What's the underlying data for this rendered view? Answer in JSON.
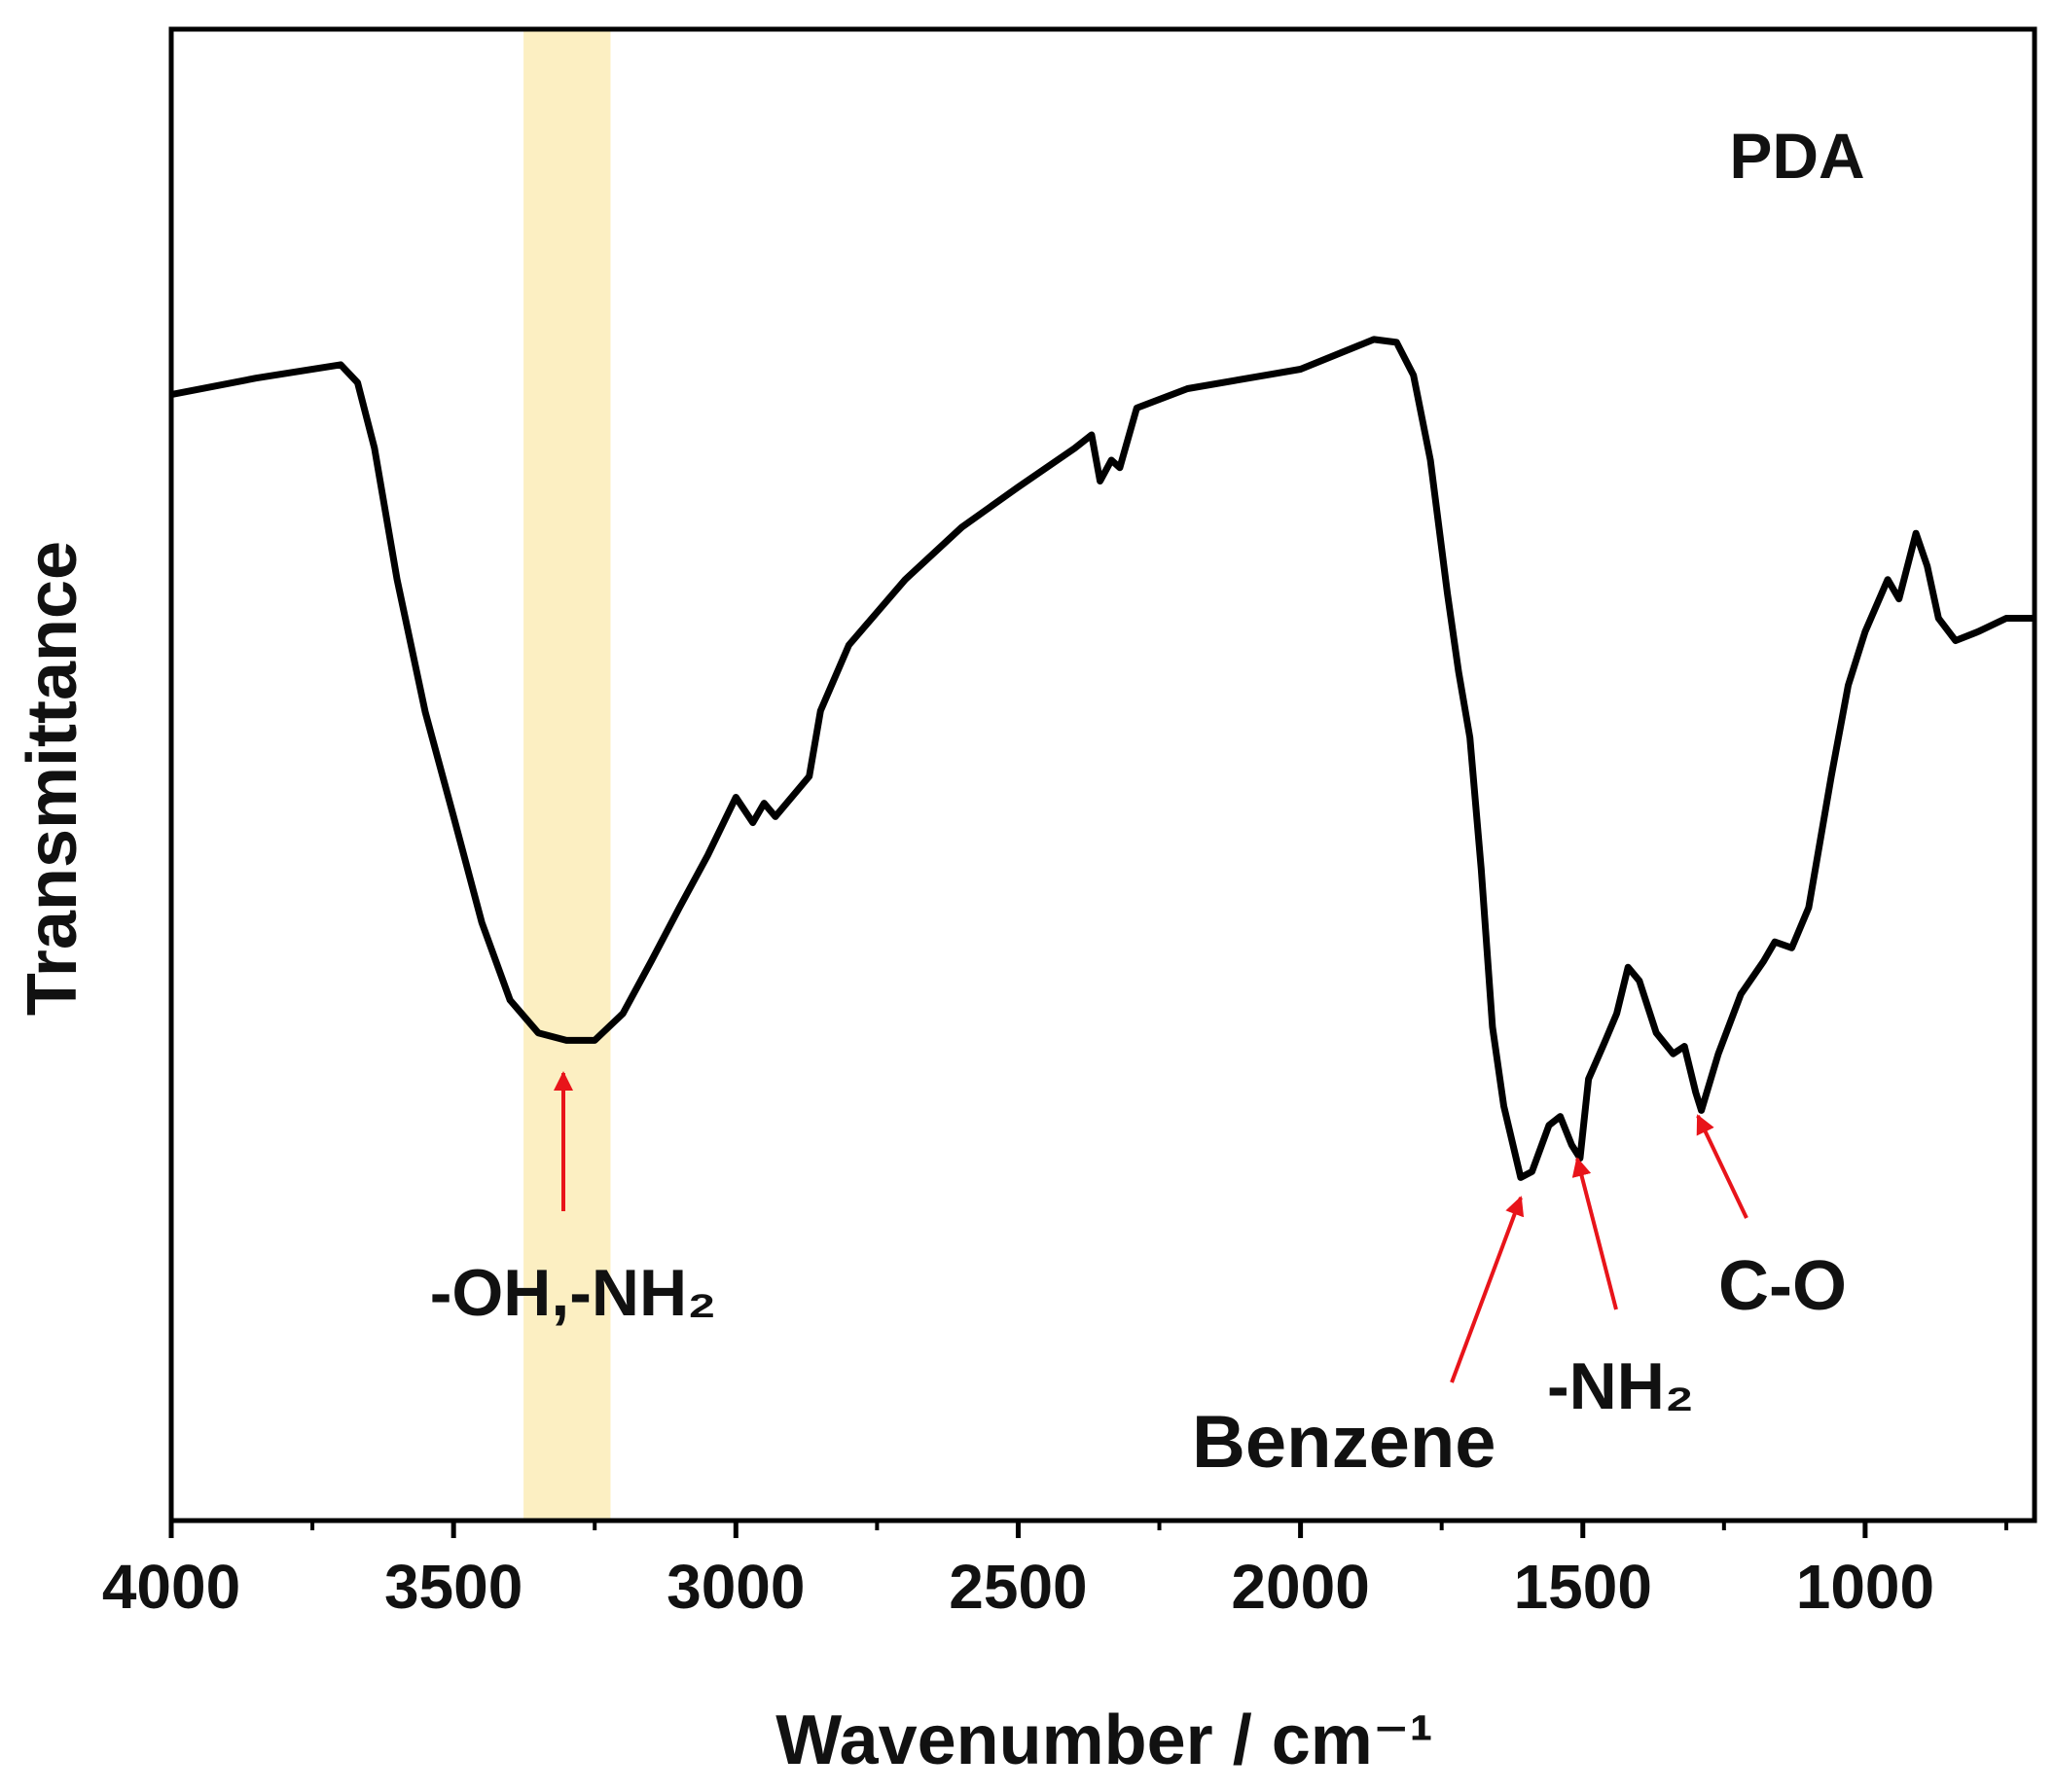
{
  "chart_data": {
    "type": "line",
    "xlabel": "Wavenumber / cm⁻¹",
    "ylabel": "Transmittance",
    "label": "PDA",
    "annotations": [
      "-OH,-NH₂",
      "Benzene",
      "-NH₂",
      "C-O"
    ],
    "highlight": [
      3376,
      3222
    ],
    "highlight_color": "#fcefc2",
    "color": "#000000",
    "arrow_color": "#e8141a",
    "xlim": [
      4000,
      700
    ],
    "xticks": [
      4000,
      3500,
      3000,
      2500,
      2000,
      1500,
      1000
    ],
    "xminorticks": [
      3750,
      3250,
      2750,
      2250,
      1750,
      1250,
      750
    ],
    "ylim": [
      0,
      100
    ],
    "x": [
      4000,
      3850,
      3700,
      3670,
      3640,
      3600,
      3550,
      3500,
      3450,
      3400,
      3350,
      3300,
      3250,
      3200,
      3150,
      3100,
      3050,
      3000,
      2970,
      2950,
      2930,
      2870,
      2850,
      2800,
      2750,
      2700,
      2600,
      2500,
      2400,
      2370,
      2355,
      2335,
      2320,
      2290,
      2200,
      2000,
      1870,
      1830,
      1800,
      1770,
      1740,
      1720,
      1700,
      1680,
      1660,
      1640,
      1610,
      1590,
      1560,
      1540,
      1520,
      1505,
      1490,
      1460,
      1440,
      1420,
      1400,
      1370,
      1340,
      1320,
      1300,
      1290,
      1260,
      1220,
      1180,
      1160,
      1130,
      1100,
      1060,
      1030,
      1000,
      960,
      940,
      910,
      890,
      870,
      840,
      800,
      750,
      700
    ],
    "values": [
      75.5,
      76.6,
      77.5,
      76.3,
      71.9,
      63.1,
      54.2,
      47.2,
      40.1,
      34.9,
      32.7,
      32.2,
      32.2,
      34.0,
      37.5,
      41.1,
      44.6,
      48.5,
      46.8,
      48.1,
      47.2,
      49.9,
      54.3,
      58.7,
      60.9,
      63.1,
      66.6,
      69.3,
      71.9,
      72.8,
      69.7,
      71.1,
      70.6,
      74.6,
      75.9,
      77.2,
      79.2,
      79.0,
      76.8,
      71.1,
      62.2,
      56.9,
      52.5,
      43.7,
      33.1,
      27.8,
      23.0,
      23.4,
      26.5,
      27.1,
      25.2,
      24.3,
      29.6,
      32.2,
      34.0,
      37.1,
      36.2,
      32.7,
      31.3,
      31.8,
      28.7,
      27.5,
      31.3,
      35.3,
      37.5,
      38.8,
      38.4,
      41.1,
      49.9,
      56.0,
      59.6,
      63.1,
      61.8,
      66.2,
      64.0,
      60.5,
      59.0,
      59.6,
      60.5,
      60.5
    ]
  }
}
